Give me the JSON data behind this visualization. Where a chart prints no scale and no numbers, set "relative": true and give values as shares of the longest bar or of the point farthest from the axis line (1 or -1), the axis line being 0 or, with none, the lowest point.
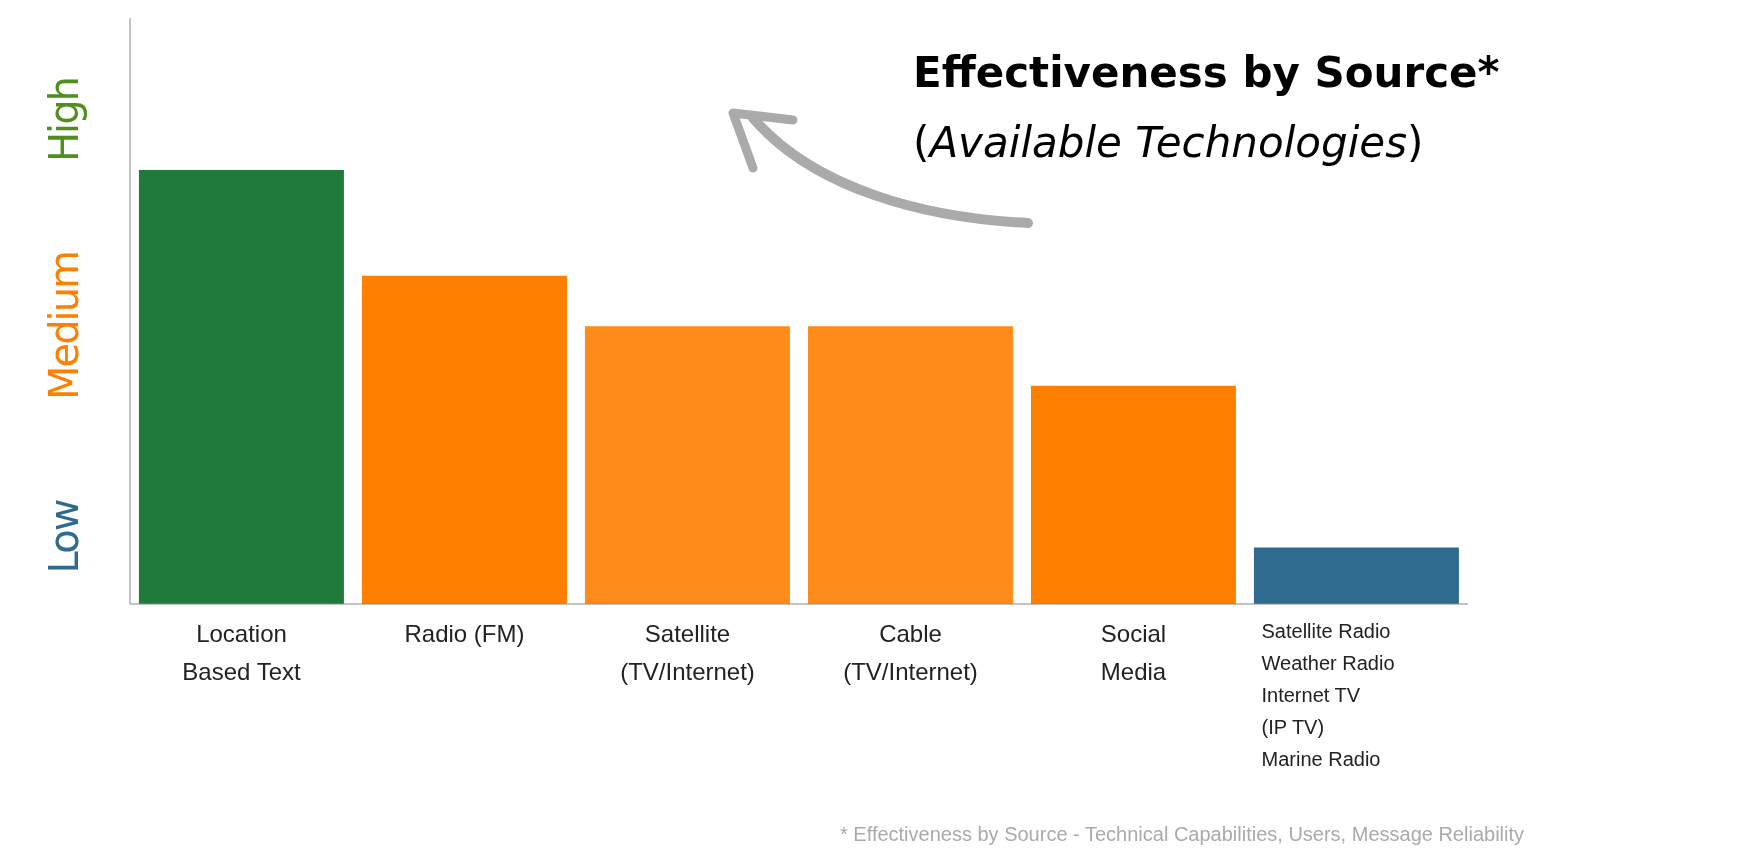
{
  "chart_data": {
    "type": "bar",
    "title": "Effectiveness by Source*",
    "subtitle": "(Available Technologies)",
    "categories": [
      "Location\nBased Text",
      "Radio (FM)",
      "Satellite\n(TV/Internet)",
      "Cable\n(TV/Internet)",
      "Social\nMedia",
      "Satellite Radio\nWeather Radio\nInternet TV\n(IP TV)\nMarine Radio"
    ],
    "values": [
      1,
      0.756,
      0.64,
      0.64,
      0.503,
      0.13
    ],
    "colors": [
      "#1e7b3a",
      "#ff8000",
      "#ff8c1a",
      "#ff8c1a",
      "#ff8000",
      "#2e6b8e"
    ],
    "relative": true,
    "annotations": [
      "Low",
      "Medium",
      "High",
      "* Effectiveness by Source - Technical Capabilities, Users, Message Reliability"
    ]
  }
}
